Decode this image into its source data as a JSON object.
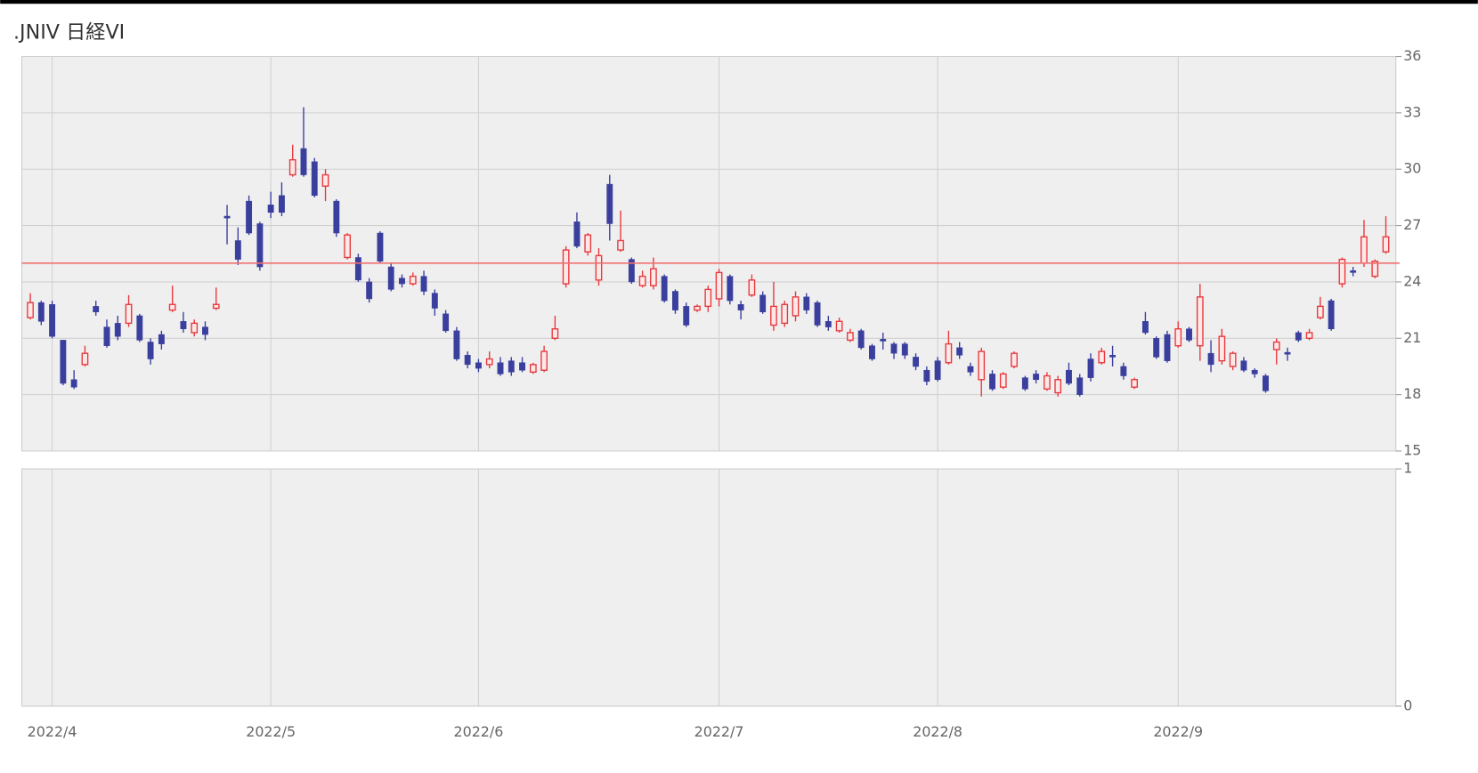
{
  "chart_data": [
    {
      "type": "candlestick",
      "title": ".JNIV 日経VI",
      "categories": [
        null,
        null,
        "2022/4",
        null,
        null,
        null,
        null,
        null,
        null,
        null,
        null,
        null,
        null,
        null,
        null,
        null,
        null,
        null,
        null,
        null,
        null,
        null,
        "2022/5",
        null,
        null,
        null,
        null,
        null,
        null,
        null,
        null,
        null,
        null,
        null,
        null,
        null,
        null,
        null,
        null,
        null,
        null,
        "2022/6",
        null,
        null,
        null,
        null,
        null,
        null,
        null,
        null,
        null,
        null,
        null,
        null,
        null,
        null,
        null,
        null,
        null,
        null,
        null,
        null,
        null,
        "2022/7",
        null,
        null,
        null,
        null,
        null,
        null,
        null,
        null,
        null,
        null,
        null,
        null,
        null,
        null,
        null,
        null,
        null,
        null,
        null,
        "2022/8",
        null,
        null,
        null,
        null,
        null,
        null,
        null,
        null,
        null,
        null,
        null,
        null,
        null,
        null,
        null,
        null,
        null,
        null,
        null,
        null,
        null,
        "2022/9",
        null,
        null,
        null,
        null,
        null,
        null,
        null,
        null,
        null,
        null,
        null,
        null,
        null,
        null,
        null,
        null,
        null,
        null,
        null
      ],
      "open": [
        22.1,
        22.9,
        22.8,
        20.9,
        18.8,
        19.6,
        22.7,
        21.6,
        21.8,
        21.8,
        22.2,
        20.8,
        21.2,
        22.5,
        21.9,
        21.3,
        21.6,
        22.6,
        27.5,
        26.2,
        28.3,
        27.1,
        28.1,
        28.6,
        29.7,
        31.1,
        30.4,
        29.1,
        28.3,
        25.3,
        25.3,
        24.0,
        26.6,
        24.8,
        24.2,
        23.9,
        24.3,
        23.4,
        22.3,
        21.4,
        20.1,
        19.7,
        19.6,
        19.7,
        19.8,
        19.7,
        19.2,
        19.3,
        21.0,
        23.9,
        27.2,
        25.6,
        24.1,
        29.2,
        25.7,
        25.2,
        23.8,
        23.8,
        24.3,
        23.5,
        22.7,
        22.5,
        22.7,
        23.1,
        24.3,
        22.8,
        23.3,
        23.3,
        21.7,
        21.8,
        22.2,
        23.2,
        22.9,
        21.9,
        21.4,
        20.9,
        21.4,
        20.6,
        20.95,
        20.7,
        20.7,
        20.0,
        19.3,
        19.8,
        19.7,
        20.5,
        19.5,
        18.8,
        19.1,
        18.4,
        19.5,
        18.9,
        19.1,
        18.3,
        18.1,
        19.3,
        18.9,
        19.9,
        19.7,
        20.1,
        19.5,
        18.4,
        21.9,
        21.0,
        21.2,
        20.6,
        21.5,
        20.6,
        20.2,
        19.8,
        19.5,
        19.8,
        19.3,
        19.0,
        20.4,
        20.25,
        21.3,
        21.0,
        22.1,
        23.0,
        23.9,
        24.6,
        25.0,
        24.3,
        25.6
      ],
      "high": [
        23.4,
        23.0,
        23.0,
        20.9,
        19.3,
        20.6,
        23.0,
        22.0,
        22.2,
        23.3,
        22.3,
        21.0,
        21.4,
        23.8,
        22.4,
        22.0,
        21.9,
        23.7,
        28.1,
        26.9,
        28.6,
        27.2,
        28.8,
        29.3,
        31.3,
        33.3,
        30.6,
        30.0,
        28.4,
        26.6,
        25.5,
        24.2,
        26.7,
        25.0,
        24.4,
        24.5,
        24.6,
        23.6,
        22.5,
        21.6,
        20.3,
        19.9,
        20.3,
        20.0,
        20.0,
        20.0,
        19.7,
        20.6,
        22.2,
        25.9,
        27.7,
        26.6,
        25.8,
        29.7,
        27.8,
        25.3,
        24.6,
        25.3,
        24.4,
        23.6,
        22.9,
        22.8,
        23.8,
        24.7,
        24.4,
        23.0,
        24.4,
        23.5,
        24.0,
        23.0,
        23.5,
        23.4,
        23.0,
        22.2,
        22.1,
        21.5,
        21.5,
        20.7,
        21.3,
        20.8,
        20.8,
        20.2,
        19.5,
        20.0,
        21.4,
        20.8,
        19.7,
        20.5,
        19.3,
        19.2,
        20.3,
        19.0,
        19.3,
        19.2,
        19.0,
        19.7,
        19.1,
        20.2,
        20.5,
        20.6,
        19.7,
        18.9,
        22.4,
        21.1,
        21.4,
        21.9,
        21.6,
        23.9,
        20.9,
        21.5,
        20.3,
        20.0,
        19.4,
        19.1,
        21.0,
        20.5,
        21.4,
        21.5,
        23.2,
        23.1,
        25.3,
        24.8,
        27.3,
        25.2,
        27.5
      ],
      "low": [
        22.0,
        21.7,
        21.0,
        18.5,
        18.3,
        19.5,
        22.2,
        20.5,
        20.9,
        21.6,
        20.8,
        19.6,
        20.4,
        22.4,
        21.3,
        21.1,
        20.9,
        22.5,
        26.0,
        24.9,
        26.5,
        24.6,
        27.4,
        27.5,
        29.6,
        29.6,
        28.5,
        28.3,
        26.4,
        25.2,
        24.0,
        22.9,
        25.0,
        23.5,
        23.7,
        23.8,
        23.3,
        22.2,
        21.3,
        19.8,
        19.4,
        19.2,
        19.4,
        19.0,
        19.0,
        19.2,
        19.1,
        19.2,
        20.9,
        23.7,
        25.8,
        25.4,
        23.8,
        26.2,
        25.6,
        23.9,
        23.7,
        23.6,
        22.9,
        22.3,
        21.6,
        22.4,
        22.4,
        22.7,
        22.8,
        22.0,
        23.2,
        22.3,
        21.4,
        21.6,
        21.9,
        22.3,
        21.6,
        21.4,
        21.3,
        20.8,
        20.4,
        19.8,
        20.4,
        19.9,
        19.9,
        19.3,
        18.5,
        18.7,
        19.6,
        19.9,
        19.0,
        17.9,
        18.2,
        18.3,
        19.4,
        18.2,
        18.6,
        18.2,
        17.9,
        18.5,
        17.9,
        18.7,
        19.6,
        19.5,
        18.8,
        18.3,
        21.2,
        19.9,
        19.7,
        20.5,
        20.8,
        19.8,
        19.2,
        19.6,
        19.3,
        19.2,
        18.9,
        18.1,
        19.6,
        19.8,
        20.8,
        20.9,
        22.0,
        21.4,
        23.7,
        24.3,
        24.8,
        24.2,
        25.5
      ],
      "close": [
        22.9,
        21.9,
        21.1,
        18.6,
        18.4,
        20.2,
        22.4,
        20.6,
        21.1,
        22.8,
        20.9,
        19.9,
        20.7,
        22.8,
        21.5,
        21.8,
        21.2,
        22.8,
        27.4,
        25.2,
        26.6,
        24.8,
        27.7,
        27.7,
        30.5,
        29.7,
        28.6,
        29.7,
        26.6,
        26.5,
        24.1,
        23.1,
        25.1,
        23.6,
        23.9,
        24.3,
        23.5,
        22.6,
        21.4,
        19.9,
        19.6,
        19.4,
        19.9,
        19.1,
        19.2,
        19.3,
        19.6,
        20.3,
        21.5,
        25.7,
        25.9,
        26.5,
        25.4,
        27.1,
        26.2,
        24.0,
        24.3,
        24.7,
        23.0,
        22.5,
        21.7,
        22.7,
        23.6,
        24.5,
        23.0,
        22.5,
        24.1,
        22.4,
        22.7,
        22.8,
        23.2,
        22.5,
        21.7,
        21.6,
        21.9,
        21.3,
        20.5,
        19.9,
        20.85,
        20.2,
        20.1,
        19.5,
        18.7,
        18.8,
        20.7,
        20.1,
        19.2,
        20.3,
        18.3,
        19.1,
        20.2,
        18.3,
        18.8,
        19.0,
        18.8,
        18.6,
        18.0,
        18.9,
        20.3,
        20.0,
        19.0,
        18.8,
        21.3,
        20.0,
        19.8,
        21.5,
        20.9,
        23.2,
        19.6,
        21.1,
        20.2,
        19.3,
        19.1,
        18.2,
        20.8,
        20.15,
        20.9,
        21.3,
        22.7,
        21.5,
        25.2,
        24.5,
        26.4,
        25.1,
        26.4
      ],
      "up_color": "#e8383d",
      "down_color": "#3a3f9e",
      "reference_line": 25,
      "reference_color": "#f07070",
      "ylim": [
        15,
        36
      ],
      "yticks": [
        15,
        18,
        21,
        24,
        27,
        30,
        33,
        36
      ],
      "grid": true
    },
    {
      "type": "empty",
      "ylim": [
        0,
        1
      ],
      "yticks": [
        0,
        1
      ],
      "grid": true
    }
  ]
}
